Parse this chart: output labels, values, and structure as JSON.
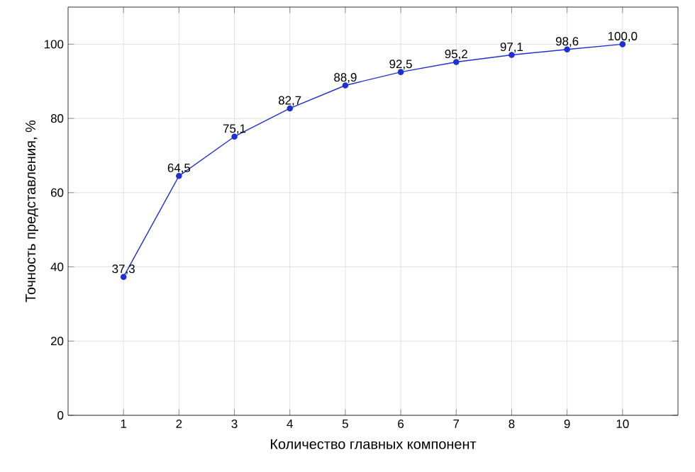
{
  "chart_data": {
    "type": "line",
    "xlabel": "Количество главных компонент",
    "ylabel": "Точность представления, %",
    "x": [
      1,
      2,
      3,
      4,
      5,
      6,
      7,
      8,
      9,
      10
    ],
    "series": [
      {
        "color": "#1f2fd0",
        "values": [
          37.3,
          64.5,
          75.1,
          82.7,
          88.9,
          92.5,
          95.2,
          97.1,
          98.6,
          100.0
        ],
        "value_labels": [
          "37,3",
          "64,5",
          "75,1",
          "82,7",
          "88,9",
          "92,5",
          "95,2",
          "97,1",
          "98,6",
          "100,0"
        ]
      }
    ],
    "xlim": [
      0,
      11
    ],
    "ylim": [
      0,
      110
    ],
    "xticks": [
      1,
      2,
      3,
      4,
      5,
      6,
      7,
      8,
      9,
      10
    ],
    "yticks": [
      0,
      20,
      40,
      60,
      80,
      100
    ],
    "grid": true,
    "marker": "circle",
    "line_style": "solid"
  }
}
